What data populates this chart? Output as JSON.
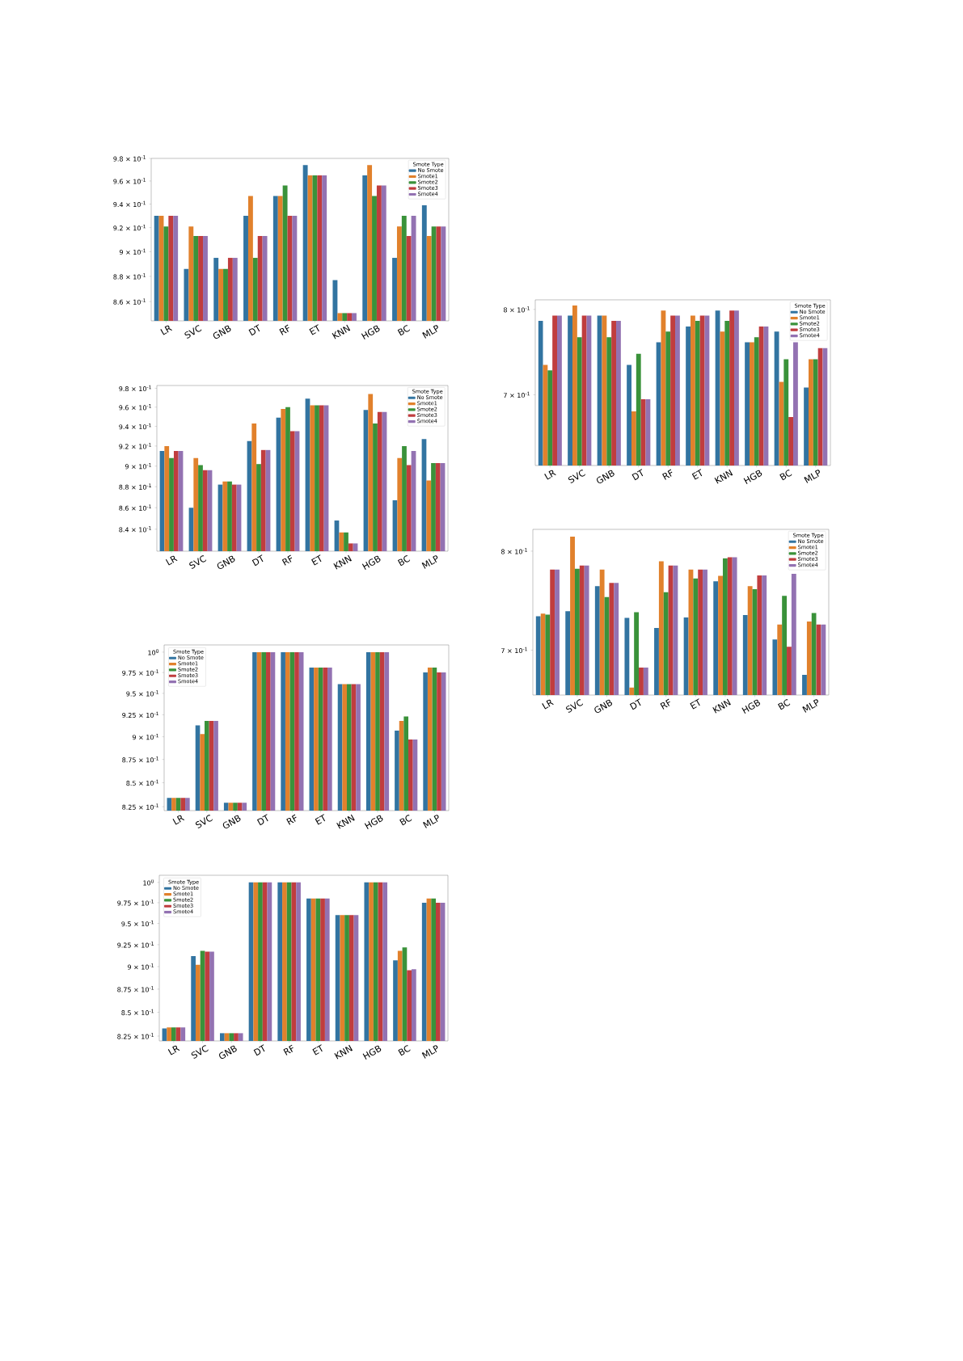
{
  "chart_data": [
    {
      "type": "bar",
      "log": "y",
      "legend": "top right",
      "legend_title": "Smote Type",
      "categories": [
        "LR",
        "SVC",
        "GNB",
        "DT",
        "RF",
        "ET",
        "KNN",
        "HGB",
        "BC",
        "MLP"
      ],
      "ylim": [
        0.845,
        0.98
      ],
      "yticks": [
        {
          "value": 0.98,
          "label": "9.8 × 10$^{-1}$"
        },
        {
          "value": 0.96,
          "label": "9.6 × 10$^{-1}$"
        },
        {
          "value": 0.94,
          "label": "9.4 × 10$^{-1}$"
        },
        {
          "value": 0.92,
          "label": "9.2 × 10$^{-1}$"
        },
        {
          "value": 0.9,
          "label": "9 × 10$^{-1}$"
        },
        {
          "value": 0.88,
          "label": "8.8 × 10$^{-1}$"
        },
        {
          "value": 0.86,
          "label": "8.6 × 10$^{-1}$"
        }
      ],
      "series": [
        {
          "name": "No Smote",
          "color": "#3274a1",
          "values": [
            0.93,
            0.886,
            0.895,
            0.93,
            0.947,
            0.974,
            0.877,
            0.965,
            0.895,
            0.939
          ]
        },
        {
          "name": "Smote1",
          "color": "#e1812c",
          "values": [
            0.93,
            0.921,
            0.886,
            0.947,
            0.947,
            0.965,
            0.851,
            0.974,
            0.921,
            0.913
          ]
        },
        {
          "name": "Smote2",
          "color": "#3a923a",
          "values": [
            0.921,
            0.913,
            0.886,
            0.895,
            0.956,
            0.965,
            0.851,
            0.947,
            0.93,
            0.921
          ]
        },
        {
          "name": "Smote3",
          "color": "#c03d3e",
          "values": [
            0.93,
            0.913,
            0.895,
            0.913,
            0.93,
            0.965,
            0.851,
            0.956,
            0.913,
            0.921
          ]
        },
        {
          "name": "Smote4",
          "color": "#9372b2",
          "values": [
            0.93,
            0.913,
            0.895,
            0.913,
            0.93,
            0.965,
            0.851,
            0.956,
            0.93,
            0.921
          ]
        }
      ]
    },
    {
      "type": "bar",
      "log": "y",
      "legend": "top right",
      "legend_title": "Smote Type",
      "categories": [
        "LR",
        "SVC",
        "GNB",
        "DT",
        "RF",
        "ET",
        "KNN",
        "HGB",
        "BC",
        "MLP"
      ],
      "ylim": [
        0.6266,
        0.8121
      ],
      "yticks": [
        {
          "value": 0.8,
          "label": "8 × 10$^{-1}$"
        },
        {
          "value": 0.7,
          "label": "7 × 10$^{-1}$"
        }
      ],
      "series": [
        {
          "name": "No Smote",
          "color": "#3274a1",
          "values": [
            0.786,
            0.7925,
            0.7925,
            0.7335,
            0.76,
            0.779,
            0.7987,
            0.76,
            0.773,
            0.708
          ]
        },
        {
          "name": "Smote1",
          "color": "#e1812c",
          "values": [
            0.7335,
            0.805,
            0.7925,
            0.682,
            0.7987,
            0.7925,
            0.773,
            0.76,
            0.7144,
            0.74
          ]
        },
        {
          "name": "Smote2",
          "color": "#3a923a",
          "values": [
            0.7273,
            0.766,
            0.766,
            0.7465,
            0.773,
            0.786,
            0.786,
            0.766,
            0.74,
            0.74
          ]
        },
        {
          "name": "Smote3",
          "color": "#c03d3e",
          "values": [
            0.7925,
            0.7925,
            0.786,
            0.6952,
            0.7925,
            0.7925,
            0.7987,
            0.779,
            0.676,
            0.753
          ]
        },
        {
          "name": "Smote4",
          "color": "#9372b2",
          "values": [
            0.7925,
            0.7925,
            0.786,
            0.6952,
            0.7925,
            0.7925,
            0.7987,
            0.779,
            0.76,
            0.753
          ]
        }
      ]
    },
    {
      "type": "bar",
      "log": "y",
      "legend": "top right",
      "legend_title": "Smote Type",
      "categories": [
        "LR",
        "SVC",
        "GNB",
        "DT",
        "RF",
        "ET",
        "KNN",
        "HGB",
        "BC",
        "MLP"
      ],
      "ylim": [
        0.82,
        0.983
      ],
      "yticks": [
        {
          "value": 0.98,
          "label": "9.8 × 10$^{-1}$"
        },
        {
          "value": 0.96,
          "label": "9.6 × 10$^{-1}$"
        },
        {
          "value": 0.94,
          "label": "9.4 × 10$^{-1}$"
        },
        {
          "value": 0.92,
          "label": "9.2 × 10$^{-1}$"
        },
        {
          "value": 0.9,
          "label": "9 × 10$^{-1}$"
        },
        {
          "value": 0.88,
          "label": "8.8 × 10$^{-1}$"
        },
        {
          "value": 0.86,
          "label": "8.6 × 10$^{-1}$"
        },
        {
          "value": 0.84,
          "label": "8.4 × 10$^{-1}$"
        }
      ],
      "series": [
        {
          "name": "No Smote",
          "color": "#3274a1",
          "values": [
            0.915,
            0.86,
            0.882,
            0.925,
            0.949,
            0.969,
            0.848,
            0.957,
            0.867,
            0.927
          ]
        },
        {
          "name": "Smote1",
          "color": "#e1812c",
          "values": [
            0.92,
            0.908,
            0.885,
            0.943,
            0.958,
            0.962,
            0.837,
            0.974,
            0.908,
            0.886
          ]
        },
        {
          "name": "Smote2",
          "color": "#3a923a",
          "values": [
            0.908,
            0.901,
            0.885,
            0.902,
            0.96,
            0.962,
            0.837,
            0.943,
            0.92,
            0.903
          ]
        },
        {
          "name": "Smote3",
          "color": "#c03d3e",
          "values": [
            0.915,
            0.896,
            0.882,
            0.916,
            0.935,
            0.962,
            0.827,
            0.955,
            0.901,
            0.903
          ]
        },
        {
          "name": "Smote4",
          "color": "#9372b2",
          "values": [
            0.915,
            0.896,
            0.882,
            0.916,
            0.935,
            0.962,
            0.827,
            0.955,
            0.915,
            0.903
          ]
        }
      ]
    },
    {
      "type": "bar",
      "log": "y",
      "legend": "top right",
      "legend_title": "Smote Type",
      "categories": [
        "LR",
        "SVC",
        "GNB",
        "DT",
        "RF",
        "ET",
        "KNN",
        "HGB",
        "BC",
        "MLP"
      ],
      "ylim": [
        0.6588,
        0.8239
      ],
      "yticks": [
        {
          "value": 0.8,
          "label": "8 × 10$^{-1}$"
        },
        {
          "value": 0.7,
          "label": "7 × 10$^{-1}$"
        }
      ],
      "series": [
        {
          "name": "No Smote",
          "color": "#3274a1",
          "values": [
            0.7327,
            0.7378,
            0.7632,
            0.7311,
            0.7213,
            0.7316,
            0.7683,
            0.734,
            0.7101,
            0.677
          ]
        },
        {
          "name": "Smote1",
          "color": "#e1812c",
          "values": [
            0.7354,
            0.8159,
            0.7804,
            0.6655,
            0.7893,
            0.7804,
            0.7739,
            0.7632,
            0.7245,
            0.7276
          ]
        },
        {
          "name": "Smote2",
          "color": "#3a923a",
          "values": [
            0.7343,
            0.7813,
            0.7519,
            0.7367,
            0.7569,
            0.7711,
            0.7924,
            0.7601,
            0.7533,
            0.7359
          ]
        },
        {
          "name": "Smote3",
          "color": "#c03d3e",
          "values": [
            0.7804,
            0.7847,
            0.7666,
            0.6837,
            0.7847,
            0.7804,
            0.7936,
            0.7742,
            0.7031,
            0.7245
          ]
        },
        {
          "name": "Smote4",
          "color": "#9372b2",
          "values": [
            0.7804,
            0.7847,
            0.7666,
            0.6837,
            0.7847,
            0.7804,
            0.7936,
            0.7742,
            0.7759,
            0.7245
          ]
        }
      ]
    },
    {
      "type": "bar",
      "log": "y",
      "legend": "top left",
      "legend_title": "Smote Type",
      "categories": [
        "LR",
        "SVC",
        "GNB",
        "DT",
        "RF",
        "ET",
        "KNN",
        "HGB",
        "BC",
        "MLP"
      ],
      "ylim": [
        0.821,
        1.009
      ],
      "yticks": [
        {
          "value": 1.0,
          "label": "10$^{0}$"
        },
        {
          "value": 0.975,
          "label": "9.75 × 10$^{-1}$"
        },
        {
          "value": 0.95,
          "label": "9.5 × 10$^{-1}$"
        },
        {
          "value": 0.925,
          "label": "9.25 × 10$^{-1}$"
        },
        {
          "value": 0.9,
          "label": "9 × 10$^{-1}$"
        },
        {
          "value": 0.875,
          "label": "8.75 × 10$^{-1}$"
        },
        {
          "value": 0.85,
          "label": "8.5 × 10$^{-1}$"
        },
        {
          "value": 0.825,
          "label": "8.25 × 10$^{-1}$"
        }
      ],
      "series": [
        {
          "name": "No Smote",
          "color": "#3274a1",
          "values": [
            0.834,
            0.913,
            0.829,
            1.0,
            1.0,
            0.981,
            0.961,
            1.0,
            0.907,
            0.975
          ]
        },
        {
          "name": "Smote1",
          "color": "#e1812c",
          "values": [
            0.834,
            0.903,
            0.829,
            1.0,
            1.0,
            0.981,
            0.961,
            1.0,
            0.918,
            0.981
          ]
        },
        {
          "name": "Smote2",
          "color": "#3a923a",
          "values": [
            0.834,
            0.918,
            0.829,
            1.0,
            1.0,
            0.981,
            0.961,
            1.0,
            0.923,
            0.981
          ]
        },
        {
          "name": "Smote3",
          "color": "#c03d3e",
          "values": [
            0.834,
            0.918,
            0.829,
            1.0,
            1.0,
            0.981,
            0.961,
            1.0,
            0.897,
            0.975
          ]
        },
        {
          "name": "Smote4",
          "color": "#9372b2",
          "values": [
            0.834,
            0.918,
            0.829,
            1.0,
            1.0,
            0.981,
            0.961,
            1.0,
            0.897,
            0.975
          ]
        }
      ]
    },
    {
      "type": "bar",
      "log": "y",
      "legend": "top left",
      "legend_title": "Smote Type",
      "categories": [
        "LR",
        "SVC",
        "GNB",
        "DT",
        "RF",
        "ET",
        "KNN",
        "HGB",
        "BC",
        "MLP"
      ],
      "ylim": [
        0.82,
        1.009
      ],
      "yticks": [
        {
          "value": 1.0,
          "label": "10$^{0}$"
        },
        {
          "value": 0.975,
          "label": "9.75 × 10$^{-1}$"
        },
        {
          "value": 0.95,
          "label": "9.5 × 10$^{-1}$"
        },
        {
          "value": 0.925,
          "label": "9.25 × 10$^{-1}$"
        },
        {
          "value": 0.9,
          "label": "9 × 10$^{-1}$"
        },
        {
          "value": 0.875,
          "label": "8.75 × 10$^{-1}$"
        },
        {
          "value": 0.85,
          "label": "8.5 × 10$^{-1}$"
        },
        {
          "value": 0.825,
          "label": "8.25 × 10$^{-1}$"
        }
      ],
      "series": [
        {
          "name": "No Smote",
          "color": "#3274a1",
          "values": [
            0.833,
            0.912,
            0.828,
            1.0,
            1.0,
            0.98,
            0.96,
            1.0,
            0.907,
            0.975
          ]
        },
        {
          "name": "Smote1",
          "color": "#e1812c",
          "values": [
            0.834,
            0.902,
            0.828,
            1.0,
            1.0,
            0.98,
            0.96,
            1.0,
            0.918,
            0.98
          ]
        },
        {
          "name": "Smote2",
          "color": "#3a923a",
          "values": [
            0.834,
            0.918,
            0.828,
            1.0,
            1.0,
            0.98,
            0.96,
            1.0,
            0.922,
            0.98
          ]
        },
        {
          "name": "Smote3",
          "color": "#c03d3e",
          "values": [
            0.834,
            0.917,
            0.828,
            1.0,
            1.0,
            0.98,
            0.96,
            1.0,
            0.896,
            0.975
          ]
        },
        {
          "name": "Smote4",
          "color": "#9372b2",
          "values": [
            0.834,
            0.917,
            0.828,
            1.0,
            1.0,
            0.98,
            0.96,
            1.0,
            0.897,
            0.975
          ]
        }
      ]
    }
  ]
}
